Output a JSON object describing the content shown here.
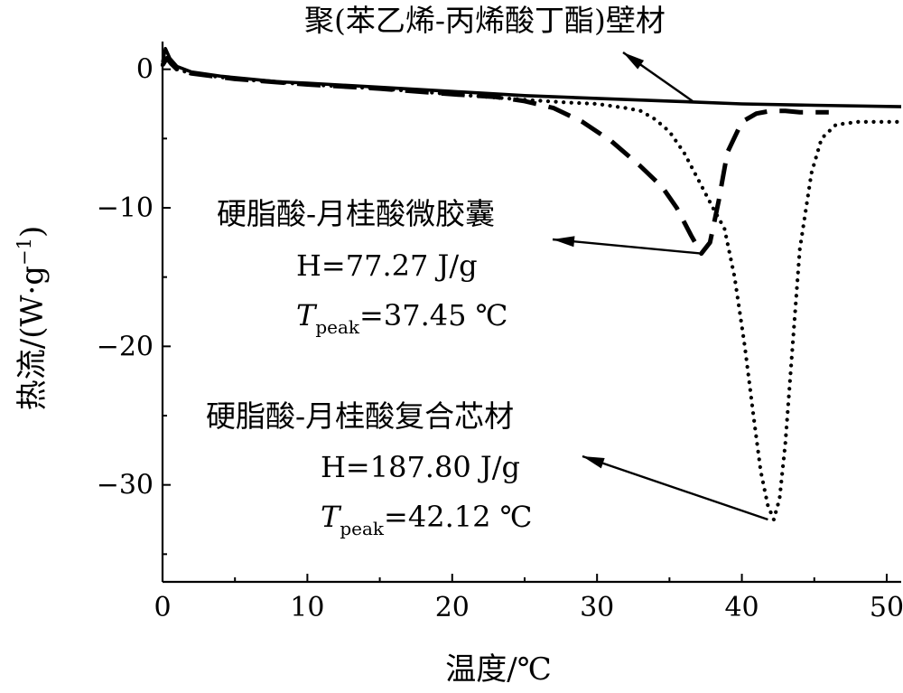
{
  "chart_data": {
    "type": "line",
    "xlabel": "温度/℃",
    "ylabel": "热流/(W·g",
    "ylabel_sup": "−1",
    "ylabel_close": ")",
    "xlim": [
      0,
      51
    ],
    "ylim": [
      -37,
      2
    ],
    "xticks": [
      {
        "value": 0,
        "label": "0"
      },
      {
        "value": 10,
        "label": "10"
      },
      {
        "value": 20,
        "label": "20"
      },
      {
        "value": 30,
        "label": "30"
      },
      {
        "value": 40,
        "label": "40"
      },
      {
        "value": 50,
        "label": "50"
      }
    ],
    "yticks": [
      {
        "value": 0,
        "label": "0"
      },
      {
        "value": -10,
        "label": "−10"
      },
      {
        "value": -20,
        "label": "−20"
      },
      {
        "value": -30,
        "label": "−30"
      }
    ],
    "series": [
      {
        "name": "聚(苯乙烯-丙烯酸丁酯)壁材",
        "style": "solid",
        "x": [
          0,
          0.2,
          0.5,
          1,
          2,
          4,
          6,
          8,
          10,
          15,
          20,
          25,
          30,
          35,
          40,
          45,
          51
        ],
        "y": [
          0.5,
          1.5,
          0.8,
          0.2,
          -0.2,
          -0.5,
          -0.7,
          -0.9,
          -1.0,
          -1.3,
          -1.6,
          -1.9,
          -2.1,
          -2.3,
          -2.5,
          -2.6,
          -2.7
        ]
      },
      {
        "name": "硬脂酸-月桂酸微胶囊",
        "style": "dashed",
        "x": [
          0,
          0.3,
          0.6,
          1,
          2,
          5,
          10,
          15,
          20,
          23,
          25,
          27,
          29,
          31,
          33,
          34.5,
          35.5,
          36.5,
          37.2,
          37.8,
          38.4,
          39,
          40,
          41,
          42,
          43,
          44,
          46
        ],
        "y": [
          0.3,
          0.8,
          0.4,
          0,
          -0.3,
          -0.7,
          -1.1,
          -1.4,
          -1.8,
          -2.0,
          -2.3,
          -2.8,
          -3.8,
          -5.2,
          -7.0,
          -8.5,
          -10.0,
          -12.0,
          -13.3,
          -12.5,
          -9.5,
          -6.0,
          -3.8,
          -3.2,
          -3.0,
          -3.0,
          -3.1,
          -3.1
        ]
      },
      {
        "name": "硬脂酸-月桂酸复合芯材",
        "style": "dotted",
        "x": [
          0,
          0.3,
          0.6,
          1,
          2,
          5,
          10,
          15,
          20,
          25,
          28,
          30,
          32,
          33,
          34,
          35,
          36,
          37,
          38,
          38.8,
          39.5,
          40.2,
          40.8,
          41.3,
          41.8,
          42.2,
          42.6,
          43,
          43.5,
          44,
          44.8,
          45.5,
          46.5,
          48,
          50,
          51
        ],
        "y": [
          0.3,
          0.8,
          0.4,
          0,
          -0.3,
          -0.7,
          -1.1,
          -1.4,
          -1.8,
          -2.2,
          -2.4,
          -2.5,
          -2.8,
          -3.0,
          -3.6,
          -4.5,
          -6.0,
          -8.0,
          -10.0,
          -11.5,
          -15.0,
          -20.0,
          -25.0,
          -29.0,
          -31.5,
          -32.5,
          -31.0,
          -27.0,
          -20.0,
          -13.0,
          -7.5,
          -5.0,
          -4.0,
          -3.8,
          -3.8,
          -3.8
        ]
      }
    ],
    "annotations": {
      "wall": {
        "label": "聚(苯乙烯-丙烯酸丁酯)壁材"
      },
      "micro": {
        "label": "硬脂酸-月桂酸微胶囊",
        "h": "H=77.27 J/g",
        "t_sym": "T",
        "t_sub": "peak",
        "t_val": "=37.45 ℃"
      },
      "core": {
        "label": "硬脂酸-月桂酸复合芯材",
        "h": "H=187.80 J/g",
        "t_sym": "T",
        "t_sub": "peak",
        "t_val": "=42.12 ℃"
      }
    }
  }
}
